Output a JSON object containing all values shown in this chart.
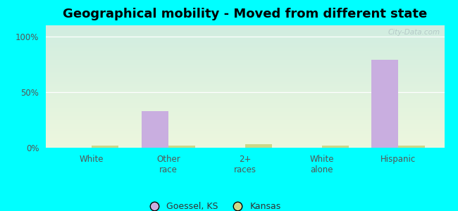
{
  "title": "Geographical mobility - Moved from different state",
  "categories": [
    "White",
    "Other\nrace",
    "2+\nraces",
    "White\nalone",
    "Hispanic"
  ],
  "goessel_values": [
    0,
    33,
    0,
    0,
    79
  ],
  "kansas_values": [
    2,
    2,
    3,
    2,
    2
  ],
  "goessel_color": "#c9aee0",
  "kansas_color": "#ccd888",
  "background_color": "#00ffff",
  "ylim": [
    0,
    110
  ],
  "yticks": [
    0,
    50,
    100
  ],
  "ytick_labels": [
    "0%",
    "50%",
    "100%"
  ],
  "bar_width": 0.35,
  "legend_labels": [
    "Goessel, KS",
    "Kansas"
  ],
  "watermark": "City-Data.com",
  "title_fontsize": 13
}
